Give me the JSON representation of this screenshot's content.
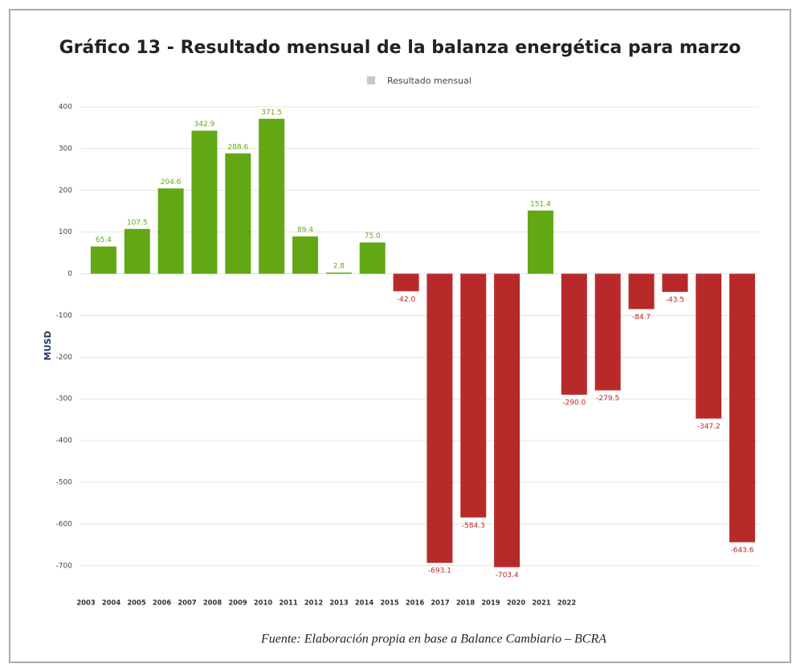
{
  "chart_data": {
    "type": "bar",
    "title": "Gráfico 13 - Resultado mensual de la balanza energética para marzo",
    "legend": "Resultado mensual",
    "ylabel": "MUSD",
    "source": "Fuente: Elaboración propia en base a Balance Cambiario – BCRA",
    "categories": [
      "2003",
      "2004",
      "2005",
      "2006",
      "2007",
      "2008",
      "2009",
      "2010",
      "2011",
      "2012",
      "2013",
      "2014",
      "2015",
      "2016",
      "2017",
      "2018",
      "2019",
      "2020",
      "2021",
      "2022"
    ],
    "values": [
      65.4,
      107.5,
      204.6,
      342.9,
      288.6,
      371.5,
      89.4,
      2.8,
      75.0,
      -42.0,
      -693.1,
      -584.3,
      -703.4,
      151.4,
      -290.0,
      -279.5,
      -84.7,
      -43.5,
      -347.2,
      -643.6
    ],
    "value_labels": [
      "65.4",
      "107.5",
      "204.6",
      "342.9",
      "288.6",
      "371.5",
      "89.4",
      "2.8",
      "75.0",
      "-42.0",
      "-693.1",
      "-584.3",
      "-703.4",
      "151.4",
      "-290.0",
      "-279.5",
      "-84.7",
      "-43.5",
      "-347.2",
      "-643.6"
    ],
    "positive_color": "#62a814",
    "negative_color": "#b82a2a",
    "legend_color": "#c8c8c8",
    "ylim": [
      -710,
      410
    ],
    "yticks": [
      400,
      300,
      200,
      100,
      0,
      -100,
      -200,
      -300,
      -400,
      -500,
      -600,
      -700
    ],
    "grid": true
  }
}
